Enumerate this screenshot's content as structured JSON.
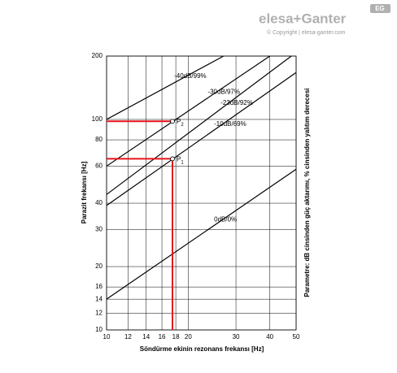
{
  "header": {
    "logo": "elesa+Ganter",
    "badge": "EG",
    "copyright": "© Copyright | elesa-ganter.com"
  },
  "chart_data": {
    "type": "line",
    "xlabel": "Söndürme ekinin rezonans frekansı [Hz]",
    "ylabel": "Parazit frekansı [Hz]",
    "side_label": "Parametre: dB cinsinden güç aktarımı, % cinsinden yalıtım derecesi",
    "log_x": true,
    "log_y": true,
    "grid": true,
    "xlim": [
      10,
      50
    ],
    "xticks": [
      10,
      12,
      14,
      16,
      18,
      20,
      30,
      40,
      50
    ],
    "ylim": [
      10,
      200
    ],
    "yticks": [
      10,
      12,
      14,
      16,
      20,
      30,
      40,
      60,
      80,
      100,
      200
    ],
    "series": [
      {
        "name": "-40dB/99%",
        "color": "#000000",
        "x": [
          10,
          27
        ],
        "values": [
          100,
          200
        ]
      },
      {
        "name": "-30dB/97%",
        "color": "#000000",
        "x": [
          10,
          40
        ],
        "values": [
          60,
          200
        ]
      },
      {
        "name": "-23dB/92%",
        "color": "#000000",
        "x": [
          10,
          48
        ],
        "values": [
          44,
          200
        ]
      },
      {
        "name": "-10dB/69%",
        "color": "#000000",
        "x": [
          10,
          50
        ],
        "values": [
          39,
          167
        ]
      },
      {
        "name": "0dB/0%",
        "color": "#000000",
        "x": [
          10,
          50
        ],
        "values": [
          14,
          58
        ]
      }
    ],
    "highlight_color": "#e8141b",
    "points": [
      {
        "label": "P",
        "sub": "2",
        "x": 17.5,
        "y": 98
      },
      {
        "label": "P",
        "sub": "1",
        "x": 17.5,
        "y": 65
      }
    ]
  }
}
